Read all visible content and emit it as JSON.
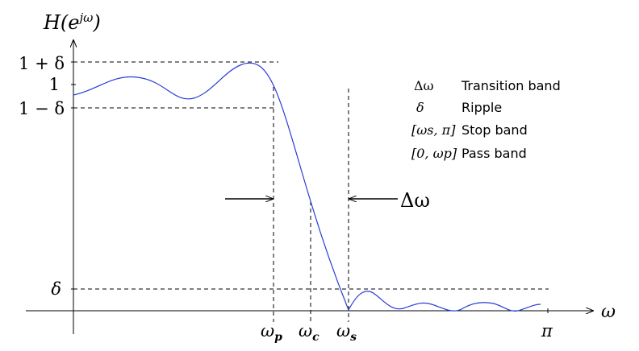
{
  "title": {
    "main": "H(e",
    "sup": "jω",
    "close": ")"
  },
  "axes": {
    "x_label": "ω",
    "y_ticks": [
      "1 + δ",
      "1",
      "1 − δ",
      "δ"
    ]
  },
  "x_ticks": [
    {
      "base": "ω",
      "sub": "p"
    },
    {
      "base": "ω",
      "sub": "c"
    },
    {
      "base": "ω",
      "sub": "s"
    },
    {
      "base": "π",
      "sub": ""
    }
  ],
  "transition_label": "Δω",
  "legend": [
    {
      "symbol": "Δω",
      "text": "Transition band"
    },
    {
      "symbol": "δ",
      "text": "Ripple"
    },
    {
      "symbol": "[ωs, π]",
      "text": "Stop band"
    },
    {
      "symbol": "[0, ωp]",
      "text": "Pass band"
    }
  ],
  "colors": {
    "curve": "#2a3dd6",
    "axis": "#000000"
  }
}
